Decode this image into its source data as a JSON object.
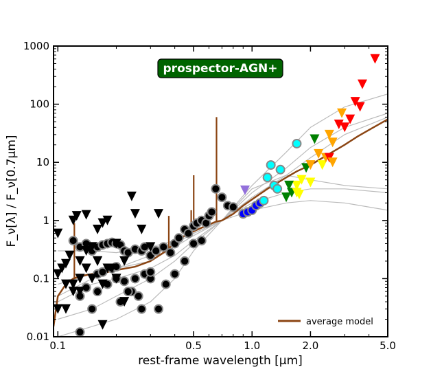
{
  "chart_data": {
    "type": "scatter",
    "title": "prospector-AGN+",
    "xlabel": "rest-frame wavelength [μm]",
    "ylabel": "F_ν[λ] / F_ν[0.7μm]",
    "xscale": "log",
    "yscale": "log",
    "xlim": [
      0.095,
      5.0
    ],
    "ylim": [
      0.01,
      1000
    ],
    "x_ticks": [
      {
        "value": 0.1,
        "label": "0.1"
      },
      {
        "value": 0.5,
        "label": "0.5"
      },
      {
        "value": 1.0,
        "label": "1.0"
      },
      {
        "value": 2.0,
        "label": "2.0"
      },
      {
        "value": 5.0,
        "label": "5.0"
      }
    ],
    "y_ticks": [
      {
        "value": 0.01,
        "label": "0.01"
      },
      {
        "value": 0.1,
        "label": "0.1"
      },
      {
        "value": 1,
        "label": "1"
      },
      {
        "value": 10,
        "label": "10"
      },
      {
        "value": 100,
        "label": "100"
      },
      {
        "value": 1000,
        "label": "1000"
      }
    ],
    "legend": {
      "position": "bottom-right",
      "entries": [
        {
          "label": "average model",
          "color": "#8B4513"
        }
      ]
    },
    "colors": {
      "badge_bg": "#006400",
      "average_model": "#8B4513",
      "individual_models": "#bbbbbb"
    },
    "average_model": {
      "name": "average model",
      "x": [
        0.095,
        0.1,
        0.11,
        0.12,
        0.13,
        0.15,
        0.18,
        0.2,
        0.25,
        0.3,
        0.35,
        0.4,
        0.45,
        0.5,
        0.55,
        0.6,
        0.65,
        0.7,
        0.8,
        0.9,
        1.0,
        1.2,
        1.5,
        1.7,
        2.0,
        2.5,
        3.0,
        3.5,
        4.0,
        5.0
      ],
      "y": [
        0.015,
        0.05,
        0.08,
        0.1,
        0.11,
        0.12,
        0.13,
        0.14,
        0.16,
        0.2,
        0.28,
        0.4,
        0.55,
        0.65,
        0.75,
        0.85,
        0.95,
        1.0,
        1.3,
        1.8,
        2.3,
        3.5,
        5.5,
        7.0,
        9.0,
        14.0,
        20.0,
        28.0,
        36.0,
        55.0
      ],
      "emission_lines": [
        {
          "x": 0.1216,
          "y": 0.9
        },
        {
          "x": 0.3727,
          "y": 1.2
        },
        {
          "x": 0.4861,
          "y": 1.5
        },
        {
          "x": 0.5007,
          "y": 6.0
        },
        {
          "x": 0.6563,
          "y": 60.0
        }
      ]
    },
    "individual_models": [
      {
        "x": [
          0.1,
          0.15,
          0.2,
          0.3,
          0.4,
          0.5,
          0.7,
          1.0,
          1.5,
          2.0,
          3.0,
          5.0
        ],
        "y": [
          0.3,
          0.3,
          0.28,
          0.35,
          0.45,
          0.6,
          1.0,
          3.0,
          8.0,
          18.0,
          40.0,
          70.0
        ]
      },
      {
        "x": [
          0.1,
          0.15,
          0.2,
          0.3,
          0.4,
          0.5,
          0.7,
          1.0,
          1.5,
          2.0,
          3.0,
          5.0
        ],
        "y": [
          0.02,
          0.03,
          0.05,
          0.1,
          0.2,
          0.4,
          1.0,
          2.5,
          6.0,
          12.0,
          30.0,
          60.0
        ]
      },
      {
        "x": [
          0.1,
          0.15,
          0.2,
          0.3,
          0.4,
          0.5,
          0.7,
          1.0,
          1.5,
          2.0,
          3.0,
          5.0
        ],
        "y": [
          0.05,
          0.1,
          0.15,
          0.25,
          0.4,
          0.6,
          1.0,
          2.0,
          3.0,
          3.5,
          3.5,
          3.0
        ]
      },
      {
        "x": [
          0.1,
          0.15,
          0.2,
          0.3,
          0.4,
          0.5,
          0.7,
          1.0,
          1.5,
          2.0,
          3.0,
          5.0
        ],
        "y": [
          0.01,
          0.015,
          0.02,
          0.04,
          0.1,
          0.3,
          1.0,
          1.5,
          2.0,
          2.2,
          2.0,
          1.5
        ]
      },
      {
        "x": [
          0.1,
          0.15,
          0.2,
          0.3,
          0.4,
          0.5,
          0.7,
          1.0,
          1.5,
          2.0,
          3.0,
          5.0
        ],
        "y": [
          0.04,
          0.08,
          0.1,
          0.15,
          0.25,
          0.45,
          1.0,
          4.0,
          15.0,
          40.0,
          90.0,
          150.0
        ]
      },
      {
        "x": [
          0.1,
          0.15,
          0.2,
          0.3,
          0.4,
          0.5,
          0.7,
          1.0,
          1.5,
          2.0,
          3.0,
          5.0
        ],
        "y": [
          0.08,
          0.12,
          0.15,
          0.2,
          0.35,
          0.55,
          1.0,
          3.5,
          6.0,
          5.0,
          4.0,
          3.5
        ]
      }
    ],
    "detections_black": {
      "x": [
        0.12,
        0.13,
        0.14,
        0.15,
        0.16,
        0.17,
        0.18,
        0.19,
        0.2,
        0.21,
        0.22,
        0.23,
        0.25,
        0.27,
        0.28,
        0.3,
        0.32,
        0.35,
        0.38,
        0.4,
        0.42,
        0.45,
        0.47,
        0.5,
        0.52,
        0.55,
        0.58,
        0.6,
        0.62,
        0.65,
        0.7,
        0.75,
        0.8,
        0.13,
        0.15,
        0.16,
        0.18,
        0.2,
        0.22,
        0.24,
        0.26,
        0.28,
        0.3,
        0.33,
        0.36,
        0.4,
        0.45,
        0.5,
        0.55,
        0.14,
        0.16,
        0.19,
        0.21,
        0.23,
        0.25,
        0.27,
        0.3,
        0.2,
        0.17,
        0.13
      ],
      "y": [
        0.45,
        0.35,
        0.4,
        0.3,
        0.35,
        0.38,
        0.4,
        0.42,
        0.4,
        0.38,
        0.3,
        0.28,
        0.32,
        0.3,
        0.35,
        0.25,
        0.3,
        0.35,
        0.28,
        0.4,
        0.5,
        0.7,
        0.6,
        0.8,
        0.9,
        1.0,
        0.9,
        1.2,
        1.4,
        3.5,
        2.5,
        1.8,
        1.7,
        0.012,
        0.03,
        0.06,
        0.08,
        0.1,
        0.09,
        0.06,
        0.05,
        0.12,
        0.1,
        0.03,
        0.08,
        0.12,
        0.2,
        0.4,
        0.45,
        0.07,
        0.12,
        0.15,
        0.04,
        0.06,
        0.1,
        0.03,
        0.13,
        0.16,
        0.13,
        0.05
      ]
    },
    "detections_colored": {
      "x": [
        0.9,
        0.95,
        1.0,
        1.05,
        1.1,
        1.15,
        1.2,
        1.25,
        1.3,
        1.35,
        1.4,
        1.7
      ],
      "y": [
        1.3,
        1.4,
        1.5,
        1.8,
        2.0,
        2.2,
        5.5,
        9.0,
        4.0,
        3.5,
        7.5,
        21.0
      ],
      "colors": [
        "#0000ff",
        "#0000ff",
        "#0000ff",
        "#0000ff",
        "#0000ff",
        "#00ffff",
        "#00ffff",
        "#00ffff",
        "#00ffff",
        "#00ffff",
        "#00ffff",
        "#00ffff"
      ]
    },
    "upper_limits_black": {
      "x": [
        0.1,
        0.1,
        0.105,
        0.11,
        0.11,
        0.115,
        0.12,
        0.12,
        0.125,
        0.13,
        0.13,
        0.14,
        0.14,
        0.15,
        0.15,
        0.16,
        0.16,
        0.17,
        0.17,
        0.18,
        0.19,
        0.2,
        0.2,
        0.22,
        0.24,
        0.25,
        0.27,
        0.3,
        0.33,
        0.1,
        0.11,
        0.12,
        0.13,
        0.15,
        0.16,
        0.18,
        0.2,
        0.22,
        0.14,
        0.17
      ],
      "y": [
        0.6,
        0.12,
        0.15,
        0.18,
        0.03,
        0.25,
        1.0,
        0.08,
        1.2,
        0.2,
        0.06,
        1.25,
        0.15,
        0.35,
        0.1,
        0.7,
        0.2,
        0.9,
        0.08,
        1.0,
        0.15,
        0.4,
        0.1,
        0.2,
        2.6,
        1.3,
        0.7,
        0.35,
        1.3,
        0.03,
        0.08,
        0.06,
        0.1,
        0.35,
        0.2,
        0.15,
        0.1,
        0.04,
        0.3,
        0.016
      ]
    },
    "upper_limits_colored": {
      "x": [
        0.92,
        1.5,
        1.6,
        1.7,
        1.75,
        1.8,
        1.9,
        2.0,
        2.1,
        2.2,
        2.3,
        2.4,
        2.5,
        2.6,
        2.8,
        2.9,
        3.0,
        3.2,
        3.4,
        3.6,
        3.7,
        4.3,
        1.55,
        1.7,
        2.0,
        2.5,
        2.6
      ],
      "y": [
        3.3,
        2.5,
        3.0,
        4.0,
        2.8,
        5.0,
        8.0,
        4.5,
        25.0,
        14.0,
        9.0,
        12.0,
        30.0,
        22.0,
        45.0,
        70.0,
        40.0,
        55.0,
        110.0,
        90.0,
        220.0,
        600.0,
        4.0,
        3.0,
        9.0,
        12.0,
        10.0
      ],
      "colors": [
        "#9370db",
        "#008000",
        "#008000",
        "#ffff00",
        "#ffff00",
        "#ffff00",
        "#008000",
        "#ffff00",
        "#008000",
        "#ffa500",
        "#ffff00",
        "#ffa500",
        "#ffa500",
        "#ffa500",
        "#ff0000",
        "#ffa500",
        "#ff0000",
        "#ff0000",
        "#ff0000",
        "#ff0000",
        "#ff0000",
        "#ff0000",
        "#008000",
        "#ffff00",
        "#ffa500",
        "#ff0000",
        "#ffa500"
      ]
    }
  }
}
